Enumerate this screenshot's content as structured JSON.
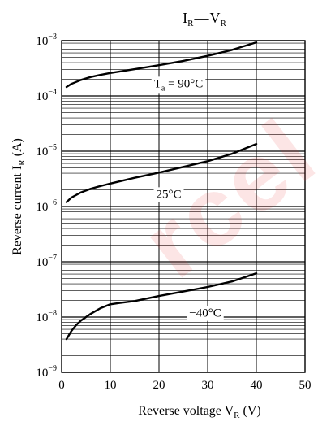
{
  "chart_data": {
    "type": "line",
    "title_main": "I",
    "title_sub": "R",
    "title_dash": "—",
    "title_main2": "V",
    "title_sub2": "R",
    "xlabel": "Reverse voltage  V",
    "xlabel_sub": "R",
    "xlabel_unit": "  (V)",
    "ylabel": "Reverse current  I",
    "ylabel_sub": "R",
    "ylabel_unit": "  (A)",
    "x_range": [
      0,
      50
    ],
    "x_ticks": [
      0,
      10,
      20,
      30,
      40,
      50
    ],
    "y_scale": "log",
    "y_range": [
      1e-09,
      0.001
    ],
    "y_ticks": [
      {
        "value": 1e-09,
        "base": "10",
        "exp": "−9"
      },
      {
        "value": 1e-08,
        "base": "10",
        "exp": "−8"
      },
      {
        "value": 1e-07,
        "base": "10",
        "exp": "−7"
      },
      {
        "value": 1e-06,
        "base": "10",
        "exp": "−6"
      },
      {
        "value": 1e-05,
        "base": "10",
        "exp": "−5"
      },
      {
        "value": 0.0001,
        "base": "10",
        "exp": "−4"
      },
      {
        "value": 0.001,
        "base": "10",
        "exp": "−3"
      }
    ],
    "grid": true,
    "series": [
      {
        "label_main": "T",
        "label_sub": "a",
        "label_rest": " = 90°C",
        "label_at": {
          "x": 24,
          "y": 0.00017
        },
        "x": [
          1,
          2,
          4,
          6,
          8,
          10,
          15,
          20,
          25,
          30,
          35,
          40
        ],
        "y": [
          0.000145,
          0.000165,
          0.000195,
          0.00022,
          0.00024,
          0.00026,
          0.000305,
          0.00036,
          0.00043,
          0.00053,
          0.00068,
          0.00093
        ]
      },
      {
        "label_main": "25°C",
        "label_sub": "",
        "label_rest": "",
        "label_at": {
          "x": 22,
          "y": 1.7e-06
        },
        "x": [
          1,
          2,
          4,
          6,
          8,
          10,
          15,
          20,
          25,
          30,
          35,
          40
        ],
        "y": [
          1.2e-06,
          1.45e-06,
          1.8e-06,
          2.1e-06,
          2.35e-06,
          2.6e-06,
          3.3e-06,
          4.1e-06,
          5.2e-06,
          6.6e-06,
          9e-06,
          1.35e-05
        ]
      },
      {
        "label_main": "−40°C",
        "label_sub": "",
        "label_rest": "",
        "label_at": {
          "x": 29.5,
          "y": 1.2e-08
        },
        "x": [
          1,
          2,
          3,
          4,
          6,
          8,
          10,
          12,
          15,
          20,
          25,
          30,
          35,
          40
        ],
        "y": [
          4e-09,
          5.6e-09,
          7.2e-09,
          8.7e-09,
          1.15e-08,
          1.45e-08,
          1.7e-08,
          1.8e-08,
          1.95e-08,
          2.4e-08,
          2.9e-08,
          3.5e-08,
          4.4e-08,
          6.2e-08
        ]
      }
    ]
  }
}
